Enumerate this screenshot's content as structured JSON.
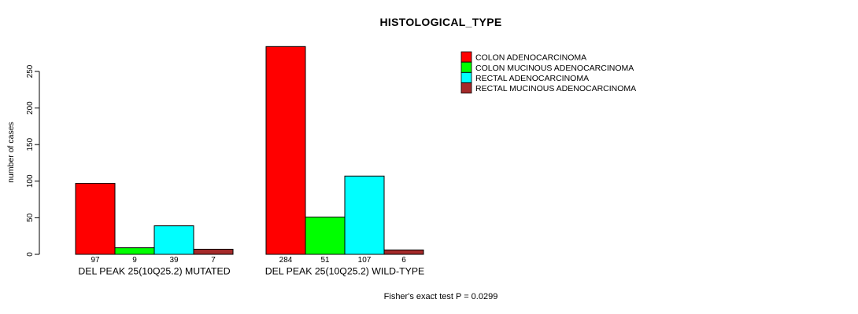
{
  "chart_data": {
    "type": "bar",
    "title": "HISTOLOGICAL_TYPE",
    "ylabel": "number of cases",
    "xlabel": "",
    "footer": "Fisher's exact test P = 0.0299",
    "categories": [
      "COLON ADENOCARCINOMA",
      "COLON MUCINOUS ADENOCARCINOMA",
      "RECTAL ADENOCARCINOMA",
      "RECTAL MUCINOUS ADENOCARCINOMA"
    ],
    "series": [
      {
        "name": "COLON ADENOCARCINOMA",
        "color": "#FF0000"
      },
      {
        "name": "COLON MUCINOUS ADENOCARCINOMA",
        "color": "#00FF00"
      },
      {
        "name": "RECTAL ADENOCARCINOMA",
        "color": "#00FFFF"
      },
      {
        "name": "RECTAL MUCINOUS ADENOCARCINOMA",
        "color": "#A52A2A"
      }
    ],
    "groups": [
      {
        "label": "DEL PEAK 25(10Q25.2) MUTATED",
        "values": [
          97,
          9,
          39,
          7
        ]
      },
      {
        "label": "DEL PEAK 25(10Q25.2) WILD-TYPE",
        "values": [
          284,
          51,
          107,
          6
        ]
      }
    ],
    "y_axis": {
      "ticks": [
        0,
        50,
        100,
        150,
        200,
        250
      ],
      "range": [
        0,
        250
      ]
    },
    "legend_position": "top-right",
    "grid": "off",
    "bar_border_color": "#000000",
    "background_color": "#FFFFFF"
  }
}
